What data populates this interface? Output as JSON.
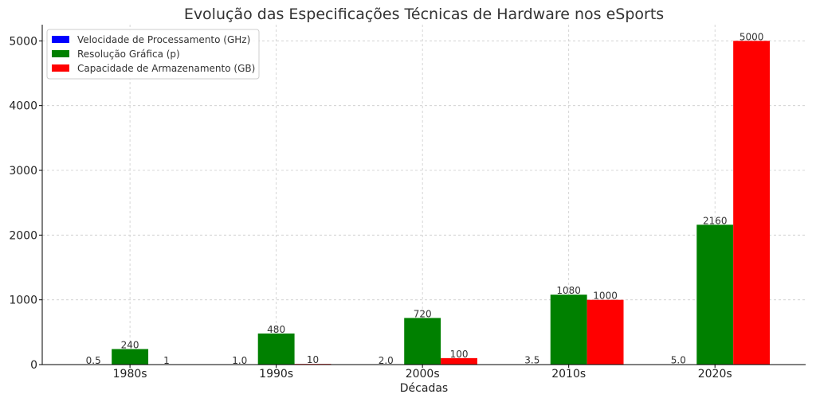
{
  "chart_data": {
    "type": "bar",
    "title": "Evolução das Especificações Técnicas de Hardware nos eSports",
    "xlabel": "Décadas",
    "ylabel": "",
    "categories": [
      "1980s",
      "1990s",
      "2000s",
      "2010s",
      "2020s"
    ],
    "ylim": [
      0,
      5250
    ],
    "yticks": [
      0,
      1000,
      2000,
      3000,
      4000,
      5000
    ],
    "grid": true,
    "legend_position": "top-left",
    "series": [
      {
        "name": "Velocidade de Processamento (GHz)",
        "color": "#0000ff",
        "values": [
          0.5,
          1.0,
          2.0,
          3.5,
          5.0
        ],
        "labels": [
          "0.5",
          "1.0",
          "2.0",
          "3.5",
          "5.0"
        ]
      },
      {
        "name": "Resolução Gráfica (p)",
        "color": "#008000",
        "values": [
          240,
          480,
          720,
          1080,
          2160
        ],
        "labels": [
          "240",
          "480",
          "720",
          "1080",
          "2160"
        ]
      },
      {
        "name": "Capacidade de Armazenamento (GB)",
        "color": "#ff0000",
        "values": [
          1,
          10,
          100,
          1000,
          5000
        ],
        "labels": [
          "1",
          "10",
          "100",
          "1000",
          "5000"
        ]
      }
    ]
  }
}
